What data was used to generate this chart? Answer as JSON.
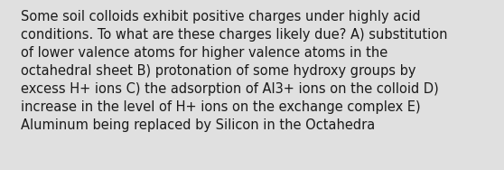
{
  "lines": [
    "Some soil colloids exhibit positive charges under highly acid",
    "conditions. To what are these charges likely due? A) substitution",
    "of lower valence atoms for higher valence atoms in the",
    "octahedral sheet B) protonation of some hydroxy groups by",
    "excess H+ ions C) the adsorption of Al3+ ions on the colloid D)",
    "increase in the level of H+ ions on the exchange complex E)",
    "Aluminum being replaced by Silicon in the Octahedra"
  ],
  "background_color": "#e0e0e0",
  "text_color": "#1a1a1a",
  "font_size": 10.5,
  "fig_width": 5.58,
  "fig_height": 1.88,
  "dpi": 100
}
